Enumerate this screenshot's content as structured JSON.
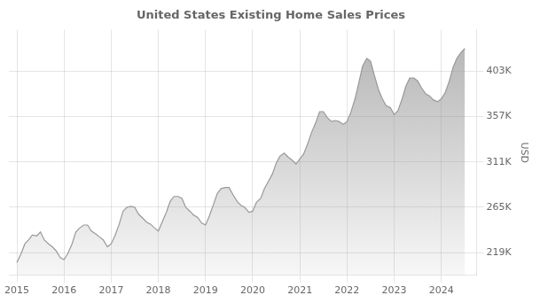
{
  "chart_data": {
    "type": "area",
    "title": "United States Existing Home Sales Prices",
    "ylabel": "USD",
    "color": "#999999",
    "grid": true,
    "xlim": [
      2014.83,
      2024.75
    ],
    "xticks": [
      2015,
      2016,
      2017,
      2018,
      2019,
      2020,
      2021,
      2022,
      2023,
      2024
    ],
    "ylim": [
      196000,
      445000
    ],
    "yticks": [
      {
        "value": 219000,
        "label": "219K"
      },
      {
        "value": 265000,
        "label": "265K"
      },
      {
        "value": 311000,
        "label": "311K"
      },
      {
        "value": 357000,
        "label": "357K"
      },
      {
        "value": 403000,
        "label": "403K"
      }
    ],
    "x": [
      2015.0,
      2015.08,
      2015.17,
      2015.25,
      2015.33,
      2015.42,
      2015.5,
      2015.58,
      2015.67,
      2015.75,
      2015.83,
      2015.92,
      2016.0,
      2016.08,
      2016.17,
      2016.25,
      2016.33,
      2016.42,
      2016.5,
      2016.58,
      2016.67,
      2016.75,
      2016.83,
      2016.92,
      2017.0,
      2017.08,
      2017.17,
      2017.25,
      2017.33,
      2017.42,
      2017.5,
      2017.58,
      2017.67,
      2017.75,
      2017.83,
      2017.92,
      2018.0,
      2018.08,
      2018.17,
      2018.25,
      2018.33,
      2018.42,
      2018.5,
      2018.58,
      2018.67,
      2018.75,
      2018.83,
      2018.92,
      2019.0,
      2019.08,
      2019.17,
      2019.25,
      2019.33,
      2019.42,
      2019.5,
      2019.58,
      2019.67,
      2019.75,
      2019.83,
      2019.92,
      2020.0,
      2020.08,
      2020.17,
      2020.25,
      2020.33,
      2020.42,
      2020.5,
      2020.58,
      2020.67,
      2020.75,
      2020.83,
      2020.92,
      2021.0,
      2021.08,
      2021.17,
      2021.25,
      2021.33,
      2021.42,
      2021.5,
      2021.58,
      2021.67,
      2021.75,
      2021.83,
      2021.92,
      2022.0,
      2022.08,
      2022.17,
      2022.25,
      2022.33,
      2022.42,
      2022.5,
      2022.58,
      2022.67,
      2022.75,
      2022.83,
      2022.92,
      2023.0,
      2023.08,
      2023.17,
      2023.25,
      2023.33,
      2023.42,
      2023.5,
      2023.58,
      2023.67,
      2023.75,
      2023.83,
      2023.92,
      2024.0,
      2024.08,
      2024.17,
      2024.25,
      2024.33,
      2024.42,
      2024.5
    ],
    "values": [
      209000,
      217000,
      228000,
      232000,
      237000,
      236000,
      240000,
      232000,
      228000,
      225000,
      221000,
      214000,
      212000,
      218000,
      228000,
      240000,
      244000,
      247000,
      247000,
      241000,
      238000,
      235000,
      232000,
      225000,
      228000,
      236000,
      248000,
      261000,
      265000,
      266000,
      265000,
      258000,
      254000,
      250000,
      248000,
      244000,
      241000,
      250000,
      260000,
      271000,
      276000,
      276000,
      274000,
      265000,
      261000,
      257000,
      255000,
      249000,
      247000,
      256000,
      268000,
      279000,
      284000,
      285000,
      285000,
      278000,
      271000,
      267000,
      265000,
      260000,
      261000,
      270000,
      274000,
      284000,
      291000,
      299000,
      310000,
      317000,
      320000,
      316000,
      313000,
      309000,
      314000,
      319000,
      330000,
      341000,
      350000,
      362000,
      362000,
      356000,
      352000,
      353000,
      352000,
      349000,
      352000,
      361000,
      375000,
      391000,
      408000,
      416000,
      413000,
      399000,
      384000,
      375000,
      368000,
      366000,
      359000,
      363000,
      375000,
      388000,
      396000,
      396000,
      393000,
      386000,
      380000,
      378000,
      374000,
      372000,
      375000,
      381000,
      393000,
      407000,
      416000,
      422000,
      426000
    ]
  }
}
